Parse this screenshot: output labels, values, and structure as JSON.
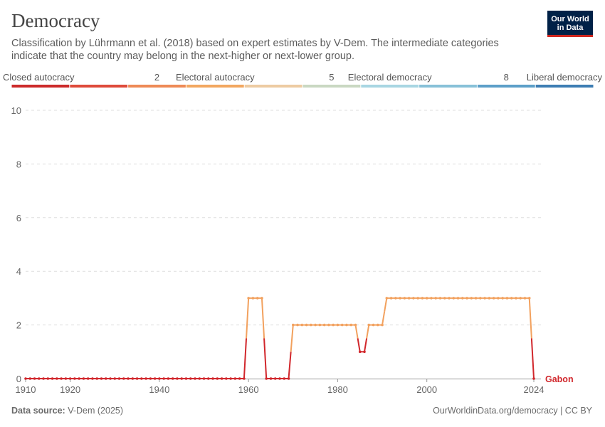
{
  "header": {
    "title": "Democracy",
    "subtitle": "Classification by Lührmann et al. (2018) based on expert estimates by V-Dem. The intermediate categories indicate that the country may belong in the next-higher or next-lower group."
  },
  "logo": {
    "line1": "Our World",
    "line2": "in Data"
  },
  "legend": {
    "labels": [
      {
        "text": "Closed autocracy",
        "anchor": "start",
        "bin": 0
      },
      {
        "text": "2",
        "anchor": "middle",
        "bin": 2.5
      },
      {
        "text": "Electoral autocracy",
        "anchor": "middle",
        "bin": 3.5
      },
      {
        "text": "5",
        "anchor": "middle",
        "bin": 5.5
      },
      {
        "text": "Electoral democracy",
        "anchor": "middle",
        "bin": 6.5
      },
      {
        "text": "8",
        "anchor": "middle",
        "bin": 8.5
      },
      {
        "text": "Liberal democracy",
        "anchor": "end",
        "bin": 10
      }
    ],
    "colors": [
      "#cc2a2a",
      "#de4a3a",
      "#ee8a56",
      "#f2a760",
      "#edcba2",
      "#c9d8c2",
      "#a8d6e2",
      "#87c1d8",
      "#5c9fc8",
      "#3d7db3"
    ]
  },
  "footer": {
    "source_label": "Data source:",
    "source_value": "V-Dem (2025)",
    "url": "OurWorldinData.org/democracy | CC BY"
  },
  "chart_data": {
    "type": "line",
    "x_ticks": [
      1910,
      1920,
      1940,
      1960,
      1980,
      2000,
      2024
    ],
    "y_ticks": [
      0,
      2,
      4,
      6,
      8,
      10
    ],
    "xlim": [
      1910,
      2024
    ],
    "ylim": [
      0,
      10
    ],
    "grid": true,
    "colors": {
      "closed": "#d1272c",
      "electoral": "#f2a15e"
    },
    "series": [
      {
        "name": "Gabon",
        "segments": [
          {
            "from": 1910,
            "to": 1959,
            "value": 0
          },
          {
            "from": 1960,
            "to": 1963,
            "value": 3
          },
          {
            "from": 1964,
            "to": 1969,
            "value": 0
          },
          {
            "from": 1970,
            "to": 1984,
            "value": 2
          },
          {
            "from": 1985,
            "to": 1986,
            "value": 1
          },
          {
            "from": 1987,
            "to": 1990,
            "value": 2
          },
          {
            "from": 1991,
            "to": 2023,
            "value": 3
          },
          {
            "from": 2024,
            "to": 2024,
            "value": 0
          }
        ]
      }
    ]
  }
}
